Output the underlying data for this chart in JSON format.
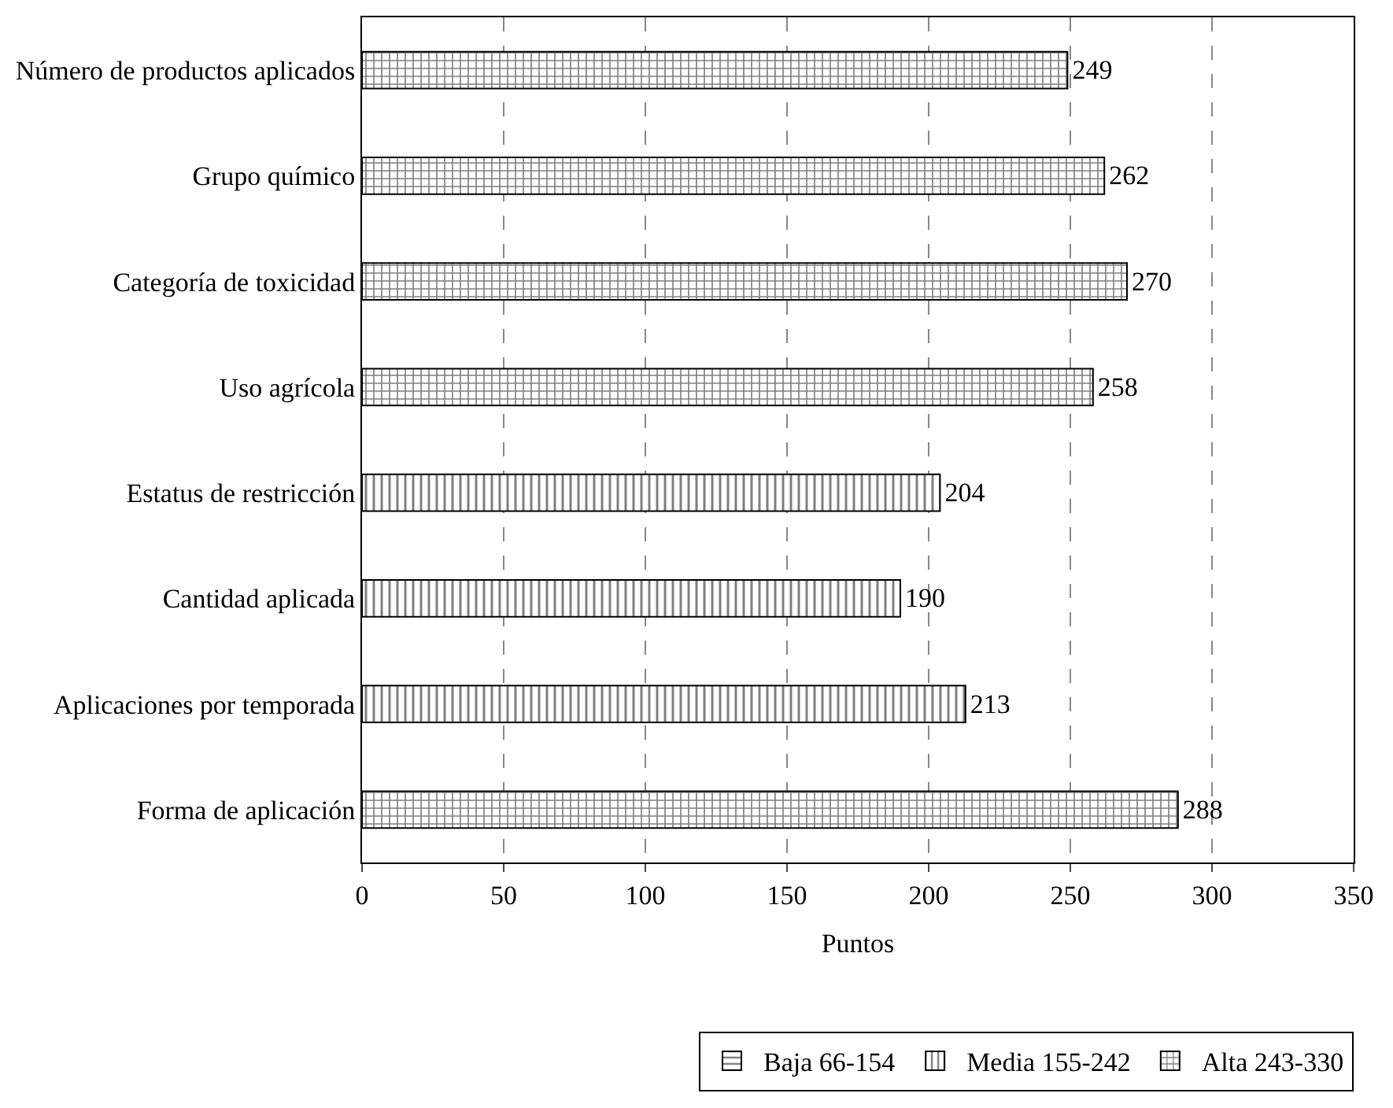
{
  "chart_data": {
    "type": "bar",
    "orientation": "horizontal",
    "xlabel": "Puntos",
    "categories": [
      "Número de productos aplicados",
      "Grupo químico",
      "Categoría de toxicidad",
      "Uso agrícola",
      "Estatus de restricción",
      "Cantidad aplicada",
      "Aplicaciones por temporada",
      "Forma de aplicación"
    ],
    "series": [
      {
        "name": "Baja 66-154",
        "color": "#000000",
        "values": [
          null,
          null,
          null,
          null,
          null,
          null,
          null,
          null
        ]
      },
      {
        "name": "Media 155-242",
        "color": "#000000",
        "values": [
          null,
          null,
          null,
          null,
          204,
          190,
          213,
          null
        ]
      },
      {
        "name": "Alta 243-330",
        "color": "#000000",
        "values": [
          249,
          262,
          270,
          258,
          null,
          null,
          null,
          288
        ]
      }
    ],
    "xlim": [
      0,
      350
    ],
    "xticks": [
      0,
      50,
      100,
      150,
      200,
      250,
      300,
      350
    ],
    "grid": "x",
    "legend": "bottom",
    "data_labels": true
  }
}
